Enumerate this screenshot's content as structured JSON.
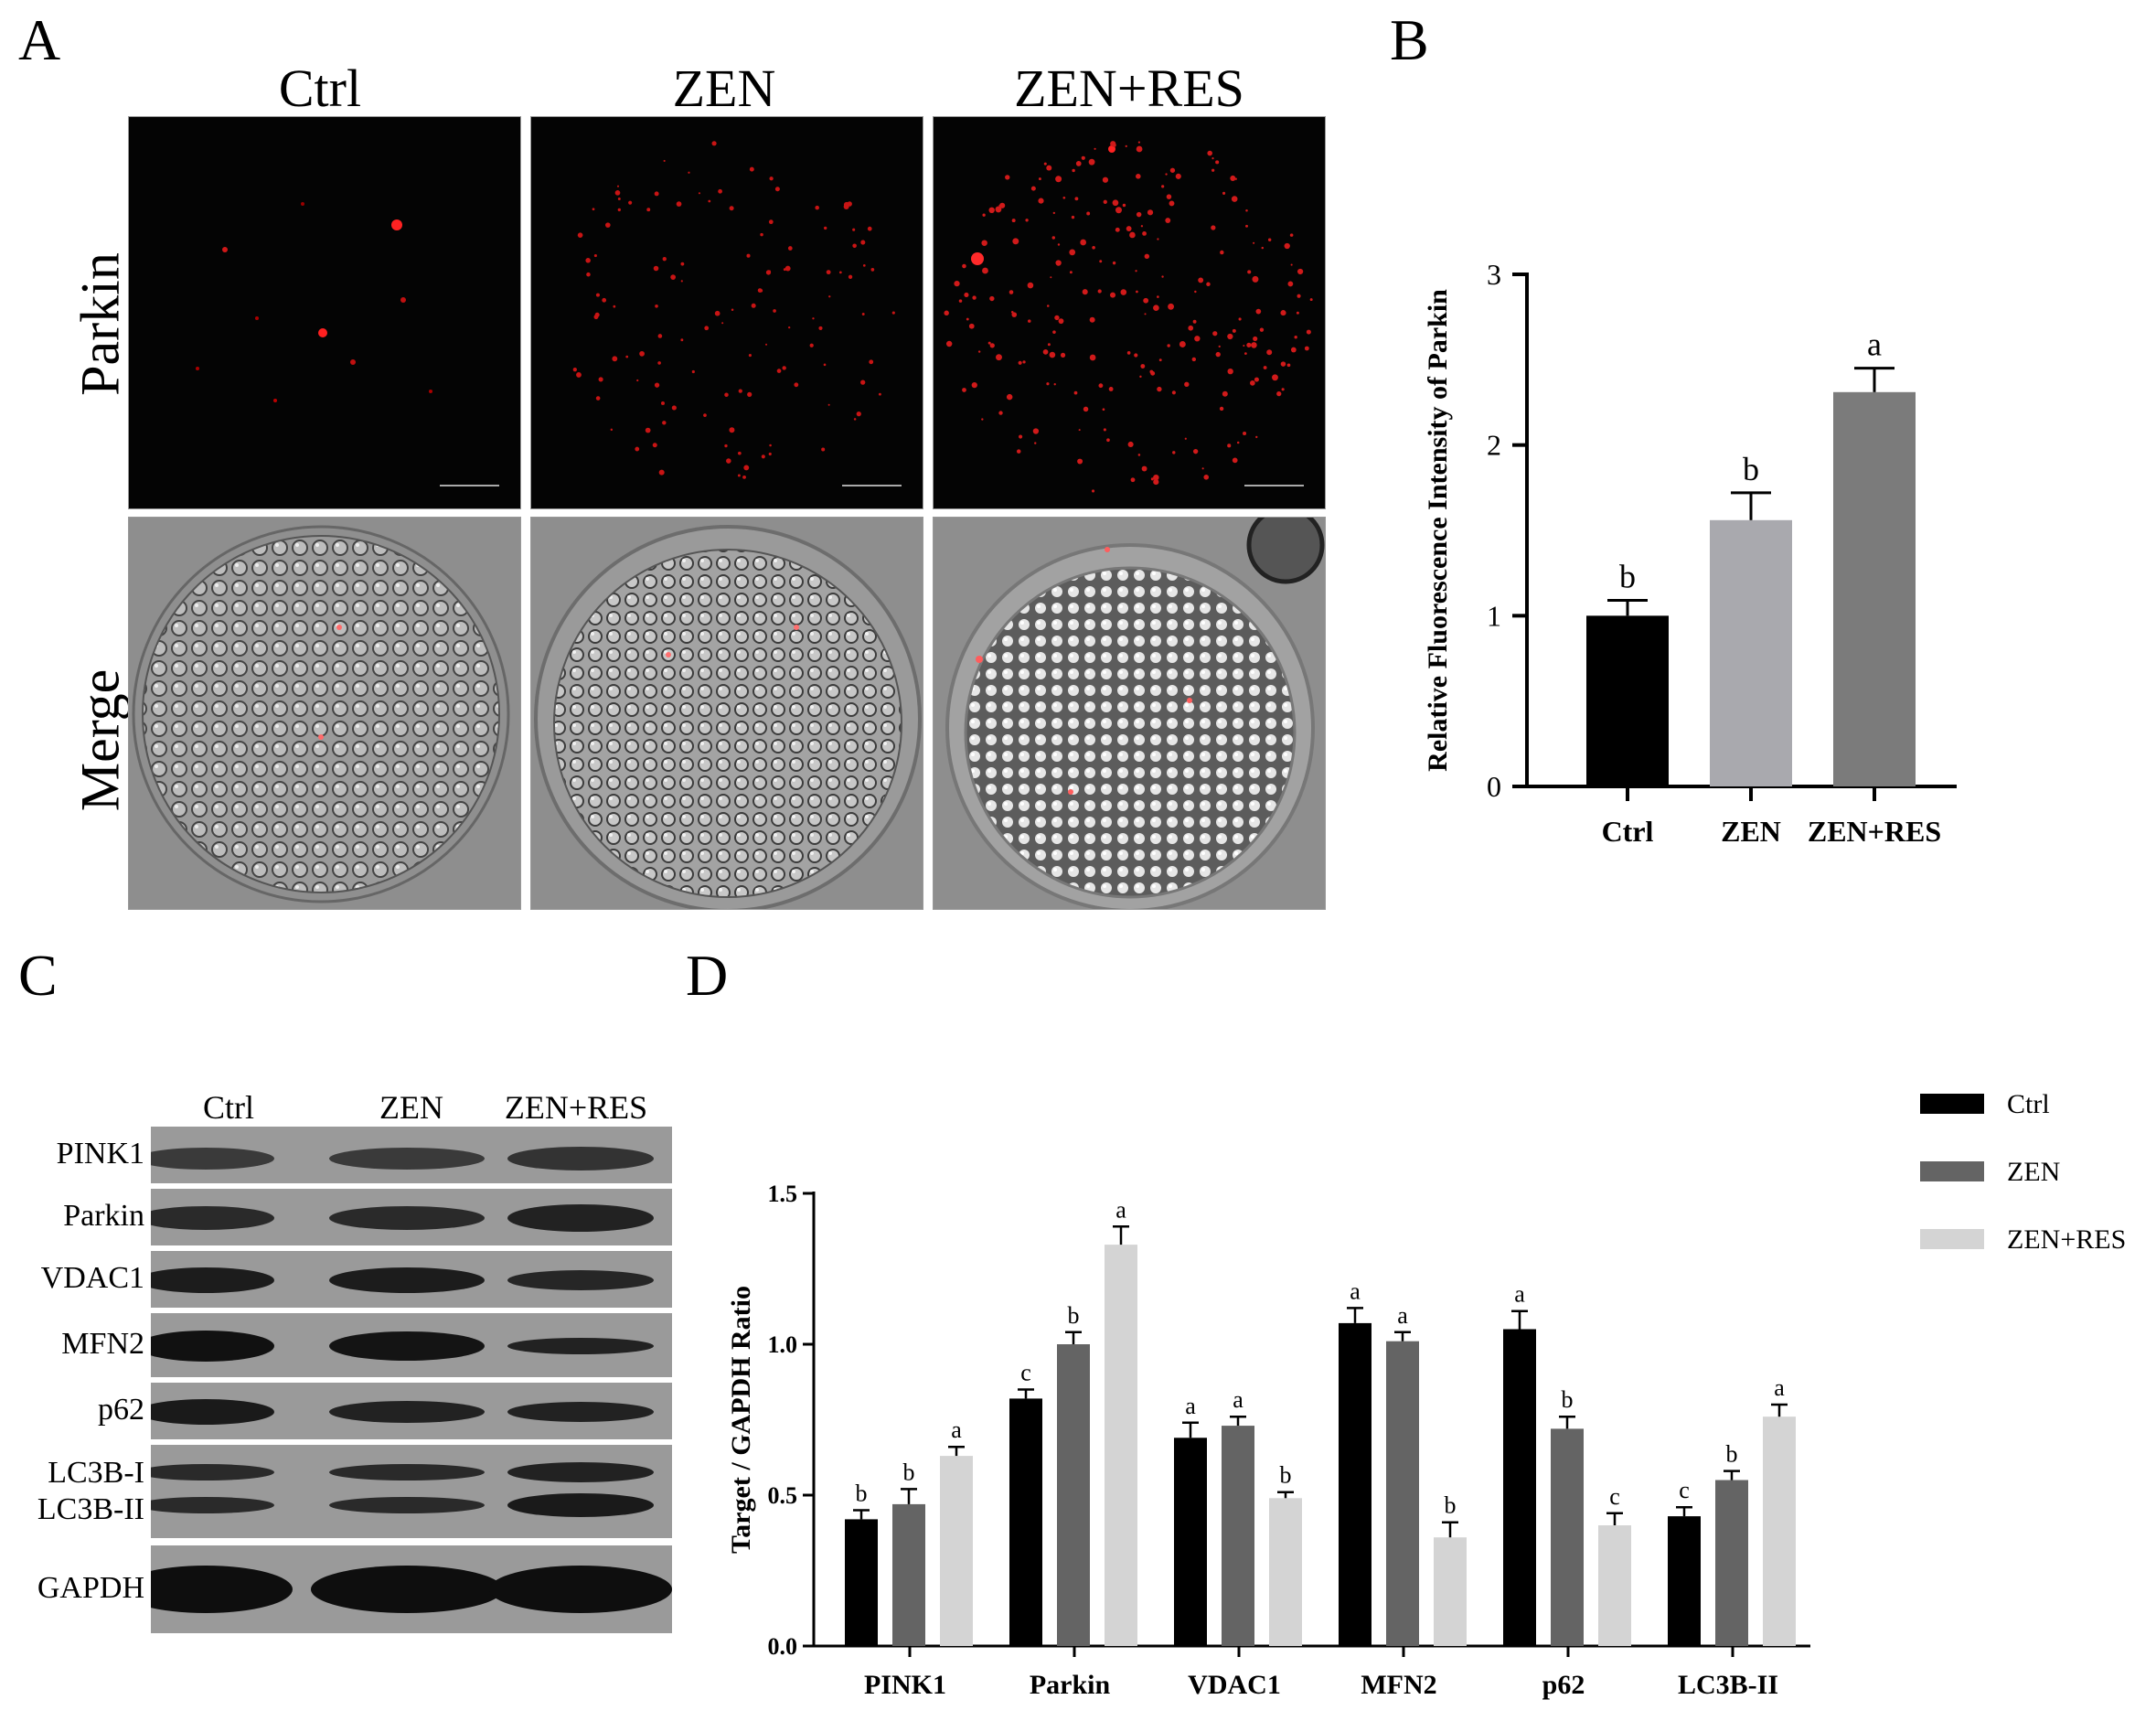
{
  "panelA": {
    "letter": "A",
    "columns": [
      "Ctrl",
      "ZEN",
      "ZEN+RES"
    ],
    "rows": [
      "Parkin",
      "Merge"
    ]
  },
  "panelB": {
    "letter": "B",
    "chart_data": {
      "type": "bar",
      "categories": [
        "Ctrl",
        "ZEN",
        "ZEN+RES"
      ],
      "values": [
        1.0,
        1.56,
        2.31
      ],
      "errors": [
        0.09,
        0.16,
        0.14
      ],
      "significance": [
        "b",
        "b",
        "a"
      ],
      "colors": [
        "#000000",
        "#a9a9ae",
        "#7b7b7b"
      ],
      "ylabel": "Relative Fluorescence Intensity of  Parkin",
      "ylim": [
        0,
        3
      ],
      "yticks": [
        0,
        1,
        2,
        3
      ],
      "grid": false
    }
  },
  "panelC": {
    "letter": "C",
    "lanes": [
      "Ctrl",
      "ZEN",
      "ZEN+RES"
    ],
    "proteins": [
      "PINK1",
      "Parkin",
      "VDAC1",
      "MFN2",
      "p62",
      "LC3B-I",
      "LC3B-II",
      "GAPDH"
    ]
  },
  "panelD": {
    "letter": "D",
    "chart_data": {
      "type": "bar",
      "categories": [
        "PINK1",
        "Parkin",
        "VDAC1",
        "MFN2",
        "p62",
        "LC3B-II"
      ],
      "series": [
        {
          "name": "Ctrl",
          "color": "#000000",
          "values": [
            0.42,
            0.82,
            0.69,
            1.07,
            1.05,
            0.43
          ],
          "errors": [
            0.03,
            0.03,
            0.05,
            0.05,
            0.06,
            0.03
          ],
          "significance": [
            "b",
            "c",
            "a",
            "a",
            "a",
            "c"
          ]
        },
        {
          "name": "ZEN",
          "color": "#646464",
          "values": [
            0.47,
            1.0,
            0.73,
            1.01,
            0.72,
            0.55
          ],
          "errors": [
            0.05,
            0.04,
            0.03,
            0.03,
            0.04,
            0.03
          ],
          "significance": [
            "b",
            "b",
            "a",
            "a",
            "b",
            "b"
          ]
        },
        {
          "name": "ZEN+RES",
          "color": "#d4d4d4",
          "values": [
            0.63,
            1.33,
            0.49,
            0.36,
            0.4,
            0.76
          ],
          "errors": [
            0.03,
            0.06,
            0.02,
            0.05,
            0.04,
            0.04
          ],
          "significance": [
            "a",
            "a",
            "b",
            "b",
            "c",
            "a"
          ]
        }
      ],
      "ylabel": "Target / GAPDH Ratio",
      "ylim": [
        0,
        1.5
      ],
      "yticks": [
        "0.0",
        "0.5",
        "1.0",
        "1.5"
      ],
      "legend": "top-right",
      "grid": false
    }
  }
}
